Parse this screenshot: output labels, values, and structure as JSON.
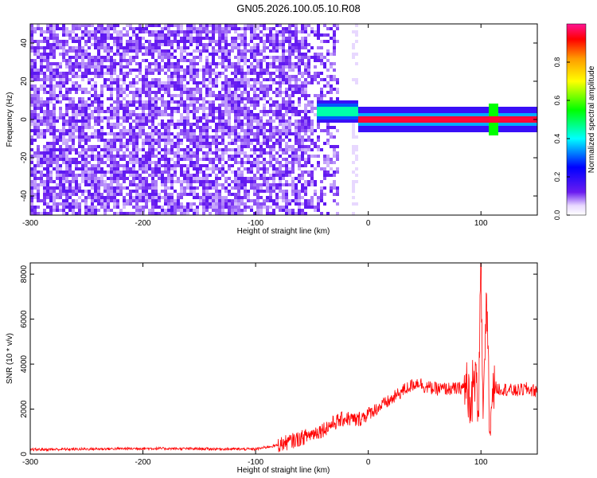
{
  "title": "GN05.2026.100.05.10.R08",
  "chart_data": [
    {
      "type": "heatmap",
      "xlabel": "Height of straight line (km)",
      "ylabel": "Frequency (Hz)",
      "xlim": [
        -300,
        150
      ],
      "ylim": [
        -50,
        50
      ],
      "x_ticks": [
        -300,
        -200,
        -100,
        0,
        100
      ],
      "y_ticks": [
        -40,
        -20,
        0,
        20,
        40
      ],
      "colorbar": {
        "label": "Normalized spectral amplitude",
        "range": [
          0,
          1
        ],
        "ticks": [
          0.0,
          0.2,
          0.4,
          0.6,
          0.8
        ],
        "colors": [
          "#e8d8ff",
          "#6a1cf0",
          "#0000ff",
          "#00ffff",
          "#00ff00",
          "#ffff00",
          "#ff9900",
          "#ff0000",
          "#ff1493"
        ]
      },
      "features": {
        "noise_region_x": [
          -300,
          -25
        ],
        "noise_amplitude": 0.1,
        "signal_band_x": [
          -45,
          150
        ],
        "signal_band_freq_hz": 0,
        "signal_peak_amplitude": 1.0,
        "peak_at_x": 110
      }
    },
    {
      "type": "line",
      "xlabel": "Height of straight line (km)",
      "ylabel": "SNR (10 * v/v)",
      "xlim": [
        -300,
        150
      ],
      "ylim": [
        0,
        8500
      ],
      "x_ticks": [
        -300,
        -200,
        -100,
        0,
        100
      ],
      "y_ticks": [
        0,
        2000,
        4000,
        6000,
        8000
      ],
      "color": "#ff0000",
      "series": [
        {
          "x": [
            -300,
            -200,
            -100,
            -80,
            -60,
            -50,
            -40,
            -30,
            -20,
            -10,
            0,
            10,
            20,
            30,
            40,
            45,
            50,
            60,
            70,
            80,
            85,
            90,
            95,
            98,
            100,
            102,
            105,
            108,
            110,
            115,
            120,
            130,
            140,
            150
          ],
          "y": [
            200,
            250,
            220,
            400,
            700,
            900,
            1100,
            1400,
            1600,
            1500,
            1800,
            2100,
            2400,
            2800,
            3100,
            3200,
            3000,
            2900,
            2900,
            2900,
            3000,
            2600,
            3300,
            2500,
            8300,
            1500,
            6500,
            800,
            3000,
            2900,
            2900,
            2800,
            2900,
            2800
          ]
        }
      ]
    }
  ]
}
